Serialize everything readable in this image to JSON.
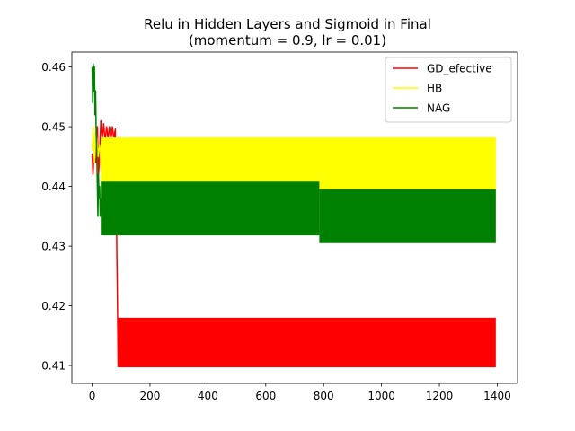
{
  "chart_data": {
    "type": "line",
    "title_lines": [
      "Relu in Hidden Layers and Sigmoid in Final",
      "(momentum = 0.9, lr = 0.01)"
    ],
    "xlabel": "",
    "ylabel": "",
    "xlim": [
      -70,
      1470
    ],
    "ylim": [
      0.407,
      0.4625
    ],
    "xticks": [
      0,
      200,
      400,
      600,
      800,
      1000,
      1200,
      1400
    ],
    "xtick_labels": [
      "0",
      "200",
      "400",
      "600",
      "800",
      "1000",
      "1200",
      "1400"
    ],
    "yticks": [
      0.41,
      0.42,
      0.43,
      0.44,
      0.45,
      0.46
    ],
    "ytick_labels": [
      "0.41",
      "0.42",
      "0.43",
      "0.44",
      "0.45",
      "0.46"
    ],
    "grid": false,
    "legend_position": "top-right",
    "series": [
      {
        "name": "GD_efective",
        "color": "#ff0000",
        "points": [
          [
            0,
            0.4455
          ],
          [
            3,
            0.442
          ],
          [
            6,
            0.445
          ],
          [
            10,
            0.4445
          ],
          [
            13,
            0.444
          ],
          [
            18,
            0.45
          ],
          [
            22,
            0.442
          ],
          [
            25,
            0.444
          ],
          [
            30,
            0.451
          ],
          [
            35,
            0.448
          ],
          [
            40,
            0.4505
          ],
          [
            45,
            0.4475
          ],
          [
            50,
            0.45
          ],
          [
            55,
            0.448
          ],
          [
            60,
            0.45
          ],
          [
            65,
            0.4478
          ],
          [
            70,
            0.45
          ],
          [
            75,
            0.448
          ],
          [
            80,
            0.4496
          ],
          [
            82,
            0.443
          ],
          [
            84,
            0.435
          ],
          [
            86,
            0.427
          ],
          [
            88,
            0.419
          ],
          [
            90,
            0.4097
          ]
        ],
        "band": {
          "x_start": 90,
          "x_end": 1395,
          "segments": [
            {
              "x_from": 90,
              "x_to": 1395,
              "low": 0.4097,
              "high": 0.418
            }
          ]
        }
      },
      {
        "name": "HB",
        "color": "#ffff00",
        "points": [
          [
            0,
            0.446
          ],
          [
            4,
            0.45
          ],
          [
            8,
            0.444
          ],
          [
            12,
            0.449
          ],
          [
            16,
            0.448
          ],
          [
            20,
            0.445
          ],
          [
            25,
            0.447
          ],
          [
            28,
            0.446
          ],
          [
            30,
            0.443
          ]
        ],
        "band": {
          "x_start": 30,
          "x_end": 1395,
          "segments": [
            {
              "x_from": 30,
              "x_to": 1395,
              "low": 0.433,
              "high": 0.4482
            }
          ]
        }
      },
      {
        "name": "NAG",
        "color": "#008000",
        "points": [
          [
            0,
            0.46
          ],
          [
            2,
            0.454
          ],
          [
            4,
            0.4605
          ],
          [
            6,
            0.456
          ],
          [
            8,
            0.46
          ],
          [
            10,
            0.452
          ],
          [
            12,
            0.456
          ],
          [
            14,
            0.449
          ],
          [
            16,
            0.446
          ],
          [
            18,
            0.44
          ],
          [
            20,
            0.435
          ],
          [
            22,
            0.442
          ],
          [
            24,
            0.438
          ],
          [
            26,
            0.44
          ],
          [
            28,
            0.435
          ],
          [
            30,
            0.438
          ]
        ],
        "band": {
          "x_start": 30,
          "x_end": 1395,
          "segments": [
            {
              "x_from": 30,
              "x_to": 785,
              "low": 0.4318,
              "high": 0.4408
            },
            {
              "x_from": 785,
              "x_to": 1395,
              "low": 0.4305,
              "high": 0.4395
            }
          ]
        }
      }
    ]
  }
}
